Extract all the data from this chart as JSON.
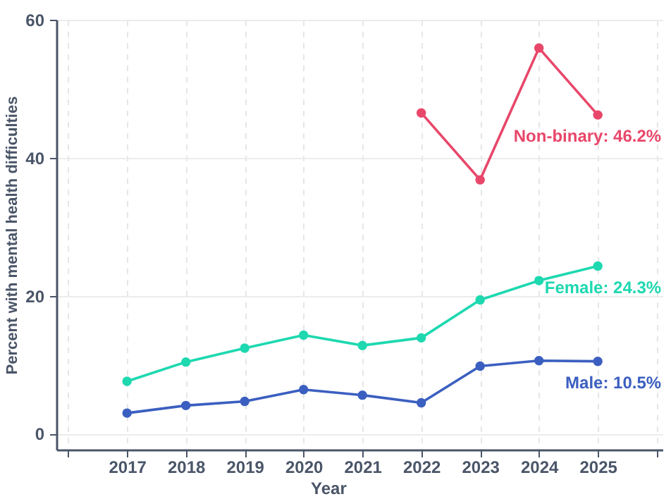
{
  "chart_data": {
    "type": "line",
    "xlabel": "Year",
    "ylabel": "Percent with mental health difficulties",
    "x": [
      2017,
      2018,
      2019,
      2020,
      2021,
      2022,
      2023,
      2024,
      2025
    ],
    "series": [
      {
        "color": "#e8476a",
        "values": [
          null,
          null,
          null,
          null,
          null,
          46.5,
          36.8,
          55.9,
          46.2
        ]
      },
      {
        "color": "#1ed8b0",
        "values": [
          7.6,
          10.4,
          12.4,
          14.3,
          12.8,
          13.9,
          19.4,
          22.2,
          24.3
        ]
      },
      {
        "color": "#3b5fc0",
        "values": [
          3.0,
          4.1,
          4.7,
          6.4,
          5.6,
          4.5,
          9.8,
          10.6,
          10.5
        ]
      }
    ],
    "annotations": [
      "Non-binary: 46.2%",
      "Female: 24.3%",
      "Male: 10.5%"
    ],
    "xlim": [
      2015.8,
      2026.1
    ],
    "xticks": [
      {
        "value": 2016,
        "label": null
      },
      2017,
      2018,
      2019,
      2020,
      2021,
      2022,
      2023,
      2024,
      2025,
      {
        "value": 2026,
        "label": null
      }
    ],
    "ylim": [
      -2.3,
      60
    ],
    "yticks": [
      0,
      20,
      40,
      60
    ],
    "grid": true,
    "marker": "circle",
    "line_style": "solid"
  }
}
